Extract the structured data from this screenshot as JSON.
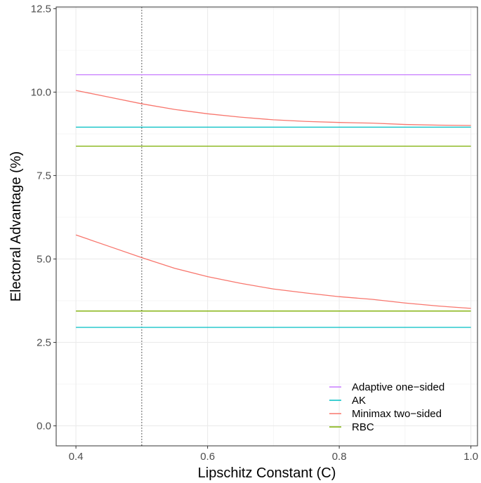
{
  "chart_data": {
    "type": "line",
    "xlabel": "Lipschitz Constant (C)",
    "ylabel": "Electoral Advantage (%)",
    "xlim": [
      0.37,
      1.01
    ],
    "ylim": [
      -0.6,
      12.55
    ],
    "x_ticks": [
      0.4,
      0.6,
      0.8,
      1.0
    ],
    "x_tick_labels": [
      "0.4",
      "0.6",
      "0.8",
      "1.0"
    ],
    "y_ticks": [
      0.0,
      2.5,
      5.0,
      7.5,
      10.0,
      12.5
    ],
    "y_tick_labels": [
      "0.0",
      "2.5",
      "5.0",
      "7.5",
      "10.0",
      "12.5"
    ],
    "grid": true,
    "legend_position": "bottom-right",
    "vline": {
      "x": 0.5,
      "style": "dotted"
    },
    "series": [
      {
        "name": "Adaptive one−sided",
        "color": "#C77CFF",
        "lines": [
          {
            "x": [
              0.4,
              1.0
            ],
            "y": [
              10.52,
              10.52
            ]
          }
        ]
      },
      {
        "name": "AK",
        "color": "#00BFC4",
        "lines": [
          {
            "x": [
              0.4,
              1.0
            ],
            "y": [
              8.95,
              8.95
            ]
          },
          {
            "x": [
              0.4,
              1.0
            ],
            "y": [
              2.95,
              2.95
            ]
          }
        ]
      },
      {
        "name": "Minimax two−sided",
        "color": "#F8766D",
        "lines": [
          {
            "x": [
              0.4,
              0.45,
              0.5,
              0.55,
              0.6,
              0.65,
              0.7,
              0.75,
              0.8,
              0.85,
              0.9,
              0.95,
              1.0
            ],
            "y": [
              10.05,
              9.85,
              9.65,
              9.48,
              9.35,
              9.25,
              9.17,
              9.12,
              9.09,
              9.07,
              9.03,
              9.01,
              9.0
            ]
          },
          {
            "x": [
              0.4,
              0.45,
              0.5,
              0.55,
              0.6,
              0.65,
              0.7,
              0.75,
              0.8,
              0.85,
              0.9,
              0.95,
              1.0
            ],
            "y": [
              5.72,
              5.38,
              5.04,
              4.72,
              4.47,
              4.27,
              4.1,
              3.98,
              3.87,
              3.79,
              3.68,
              3.59,
              3.52
            ]
          }
        ]
      },
      {
        "name": "RBC",
        "color": "#7CAE00",
        "lines": [
          {
            "x": [
              0.4,
              1.0
            ],
            "y": [
              8.38,
              8.38
            ]
          },
          {
            "x": [
              0.4,
              1.0
            ],
            "y": [
              3.44,
              3.44
            ]
          }
        ]
      }
    ]
  }
}
